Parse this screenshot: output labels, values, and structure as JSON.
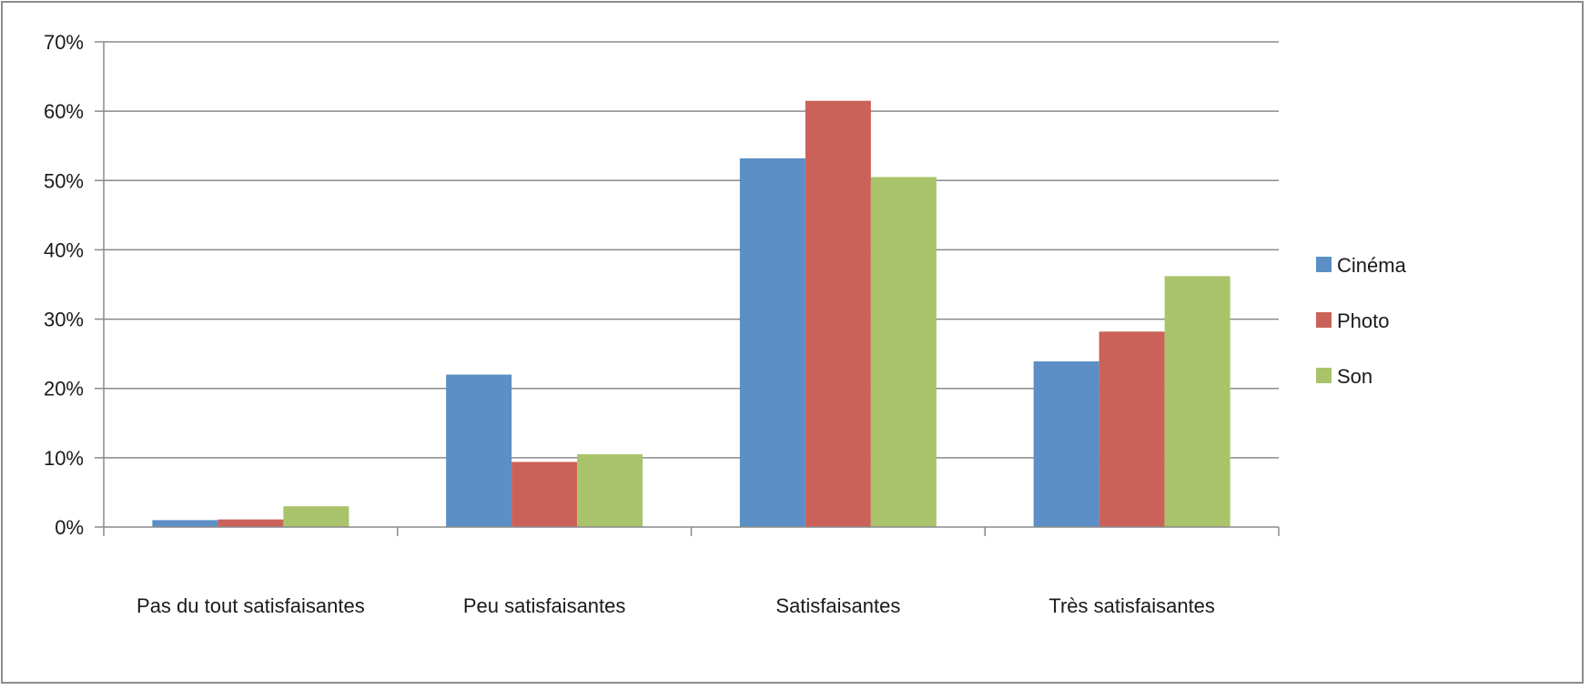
{
  "chart_data": {
    "type": "bar",
    "categories": [
      "Pas du tout satisfaisantes",
      "Peu satisfaisantes",
      "Satisfaisantes",
      "Très satisfaisantes"
    ],
    "series": [
      {
        "name": "Cinéma",
        "color": "#5b8fc5",
        "values": [
          1,
          22,
          53.2,
          23.9
        ]
      },
      {
        "name": "Photo",
        "color": "#cb6259",
        "values": [
          1.1,
          9.4,
          61.5,
          28.2
        ]
      },
      {
        "name": "Son",
        "color": "#a9c36a",
        "values": [
          3,
          10.5,
          50.5,
          36.2
        ]
      }
    ],
    "ylim": [
      0,
      70
    ],
    "yticks": [
      0,
      10,
      20,
      30,
      40,
      50,
      60,
      70
    ],
    "ytick_labels": [
      "0%",
      "10%",
      "20%",
      "30%",
      "40%",
      "50%",
      "60%",
      "70%"
    ],
    "grid": true,
    "legend": "right"
  }
}
